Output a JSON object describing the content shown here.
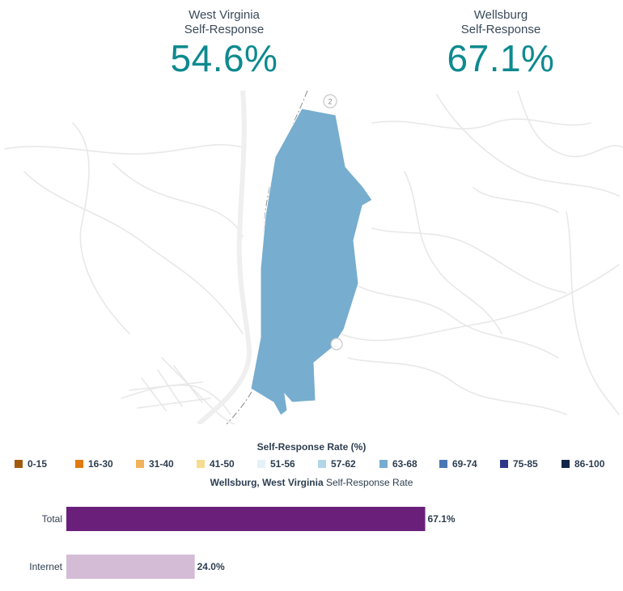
{
  "stats": {
    "left": {
      "label_line1": "West Virginia",
      "label_line2": "Self-Response",
      "value": "54.6%"
    },
    "right": {
      "label_line1": "Wellsburg",
      "label_line2": "Self-Response",
      "value": "67.1%"
    }
  },
  "map": {
    "region_color": "#77adcf",
    "road_color": "#e6e6e6",
    "route_shields": [
      "2",
      "2"
    ]
  },
  "legend": {
    "title": "Self-Response Rate (%)",
    "items": [
      {
        "label": "0-15",
        "color": "#a35a0c"
      },
      {
        "label": "16-30",
        "color": "#e07b10"
      },
      {
        "label": "31-40",
        "color": "#f2b25c"
      },
      {
        "label": "41-50",
        "color": "#f7dc8f"
      },
      {
        "label": "51-56",
        "color": "#e4f1f8"
      },
      {
        "label": "57-62",
        "color": "#b1d6e8"
      },
      {
        "label": "63-68",
        "color": "#77adcf"
      },
      {
        "label": "69-74",
        "color": "#4877b4"
      },
      {
        "label": "75-85",
        "color": "#2e3688"
      },
      {
        "label": "86-100",
        "color": "#13264a"
      }
    ]
  },
  "chart_title": {
    "place": "Wellsburg, West Virginia",
    "suffix": "Self-Response Rate"
  },
  "chart_data": {
    "type": "bar",
    "orientation": "horizontal",
    "categories": [
      "Total",
      "Internet"
    ],
    "values": [
      67.1,
      24.0
    ],
    "value_labels": [
      "67.1%",
      "24.0%"
    ],
    "colors": [
      "#6a1f7a",
      "#d4bcd6"
    ],
    "xlim": [
      0,
      100
    ]
  }
}
